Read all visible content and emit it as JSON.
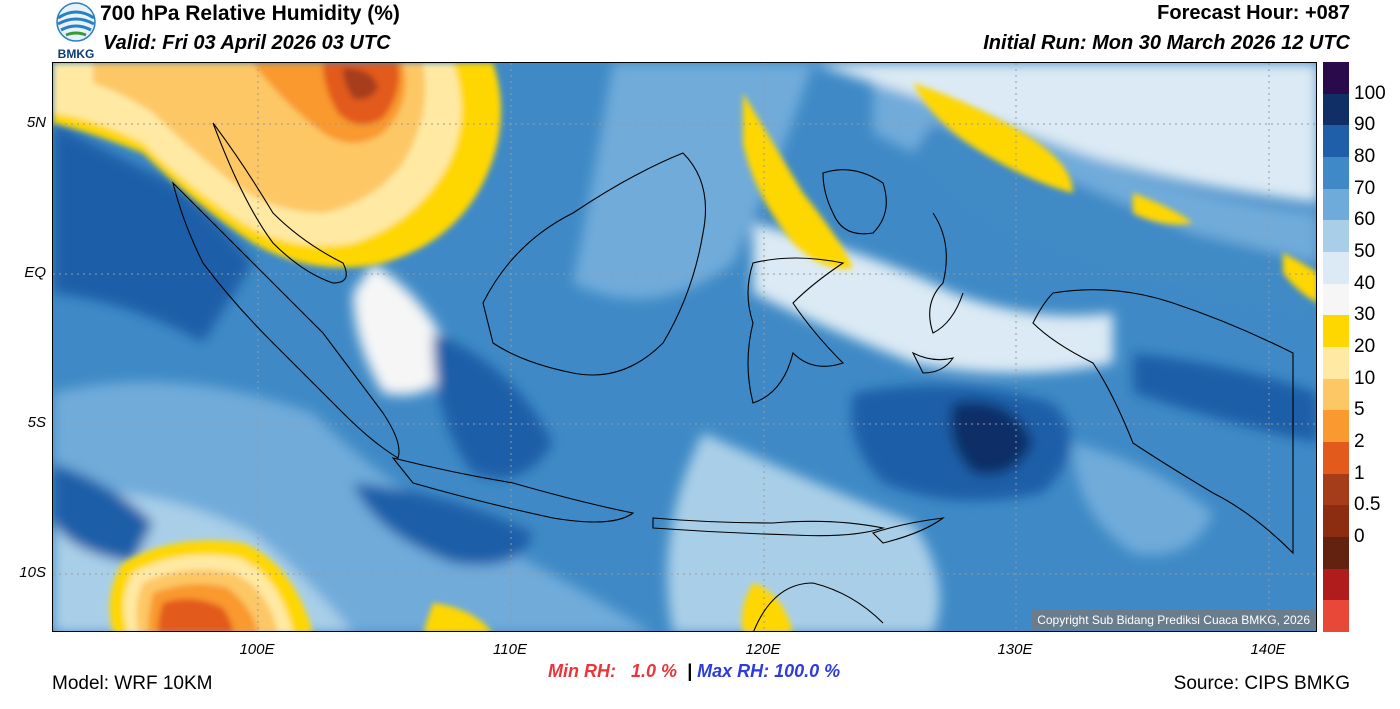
{
  "header": {
    "title": "700 hPa Relative Humidity (%)",
    "valid": "Valid: Fri 03 April 2026 03 UTC",
    "forecast_hour": "Forecast Hour: +087",
    "initial_run": "Initial Run: Mon 30 March 2026 12 UTC"
  },
  "logo": {
    "text": "BMKG"
  },
  "map": {
    "lat_labels": [
      "5N",
      "EQ",
      "5S",
      "10S"
    ],
    "lon_labels": [
      "100E",
      "110E",
      "120E",
      "130E",
      "140E"
    ],
    "copyright": "Copyright Sub Bidang Prediksi Cuaca BMKG, 2026"
  },
  "colorbar": {
    "labels": [
      "100",
      "90",
      "80",
      "70",
      "60",
      "50",
      "40",
      "30",
      "20",
      "10",
      "5",
      "2",
      "1",
      "0.5",
      "0"
    ],
    "colors": [
      "#2a0a4a",
      "#0f2f66",
      "#1f5ea8",
      "#3f8ac6",
      "#6fabda",
      "#a9cfe8",
      "#dbeaf4",
      "#f6f6f6",
      "#ffd700",
      "#ffe9a3",
      "#fdc765",
      "#f9992f",
      "#e25a1c",
      "#a63d1a",
      "#8c2d12",
      "#62220f",
      "#b01c1c",
      "#e84838"
    ]
  },
  "footer": {
    "model": "Model: WRF 10KM",
    "source": "Source: CIPS BMKG",
    "min_rh_label": "Min RH:   1.0 %",
    "separator": "|",
    "max_rh_label": "Max RH: 100.0 %"
  }
}
